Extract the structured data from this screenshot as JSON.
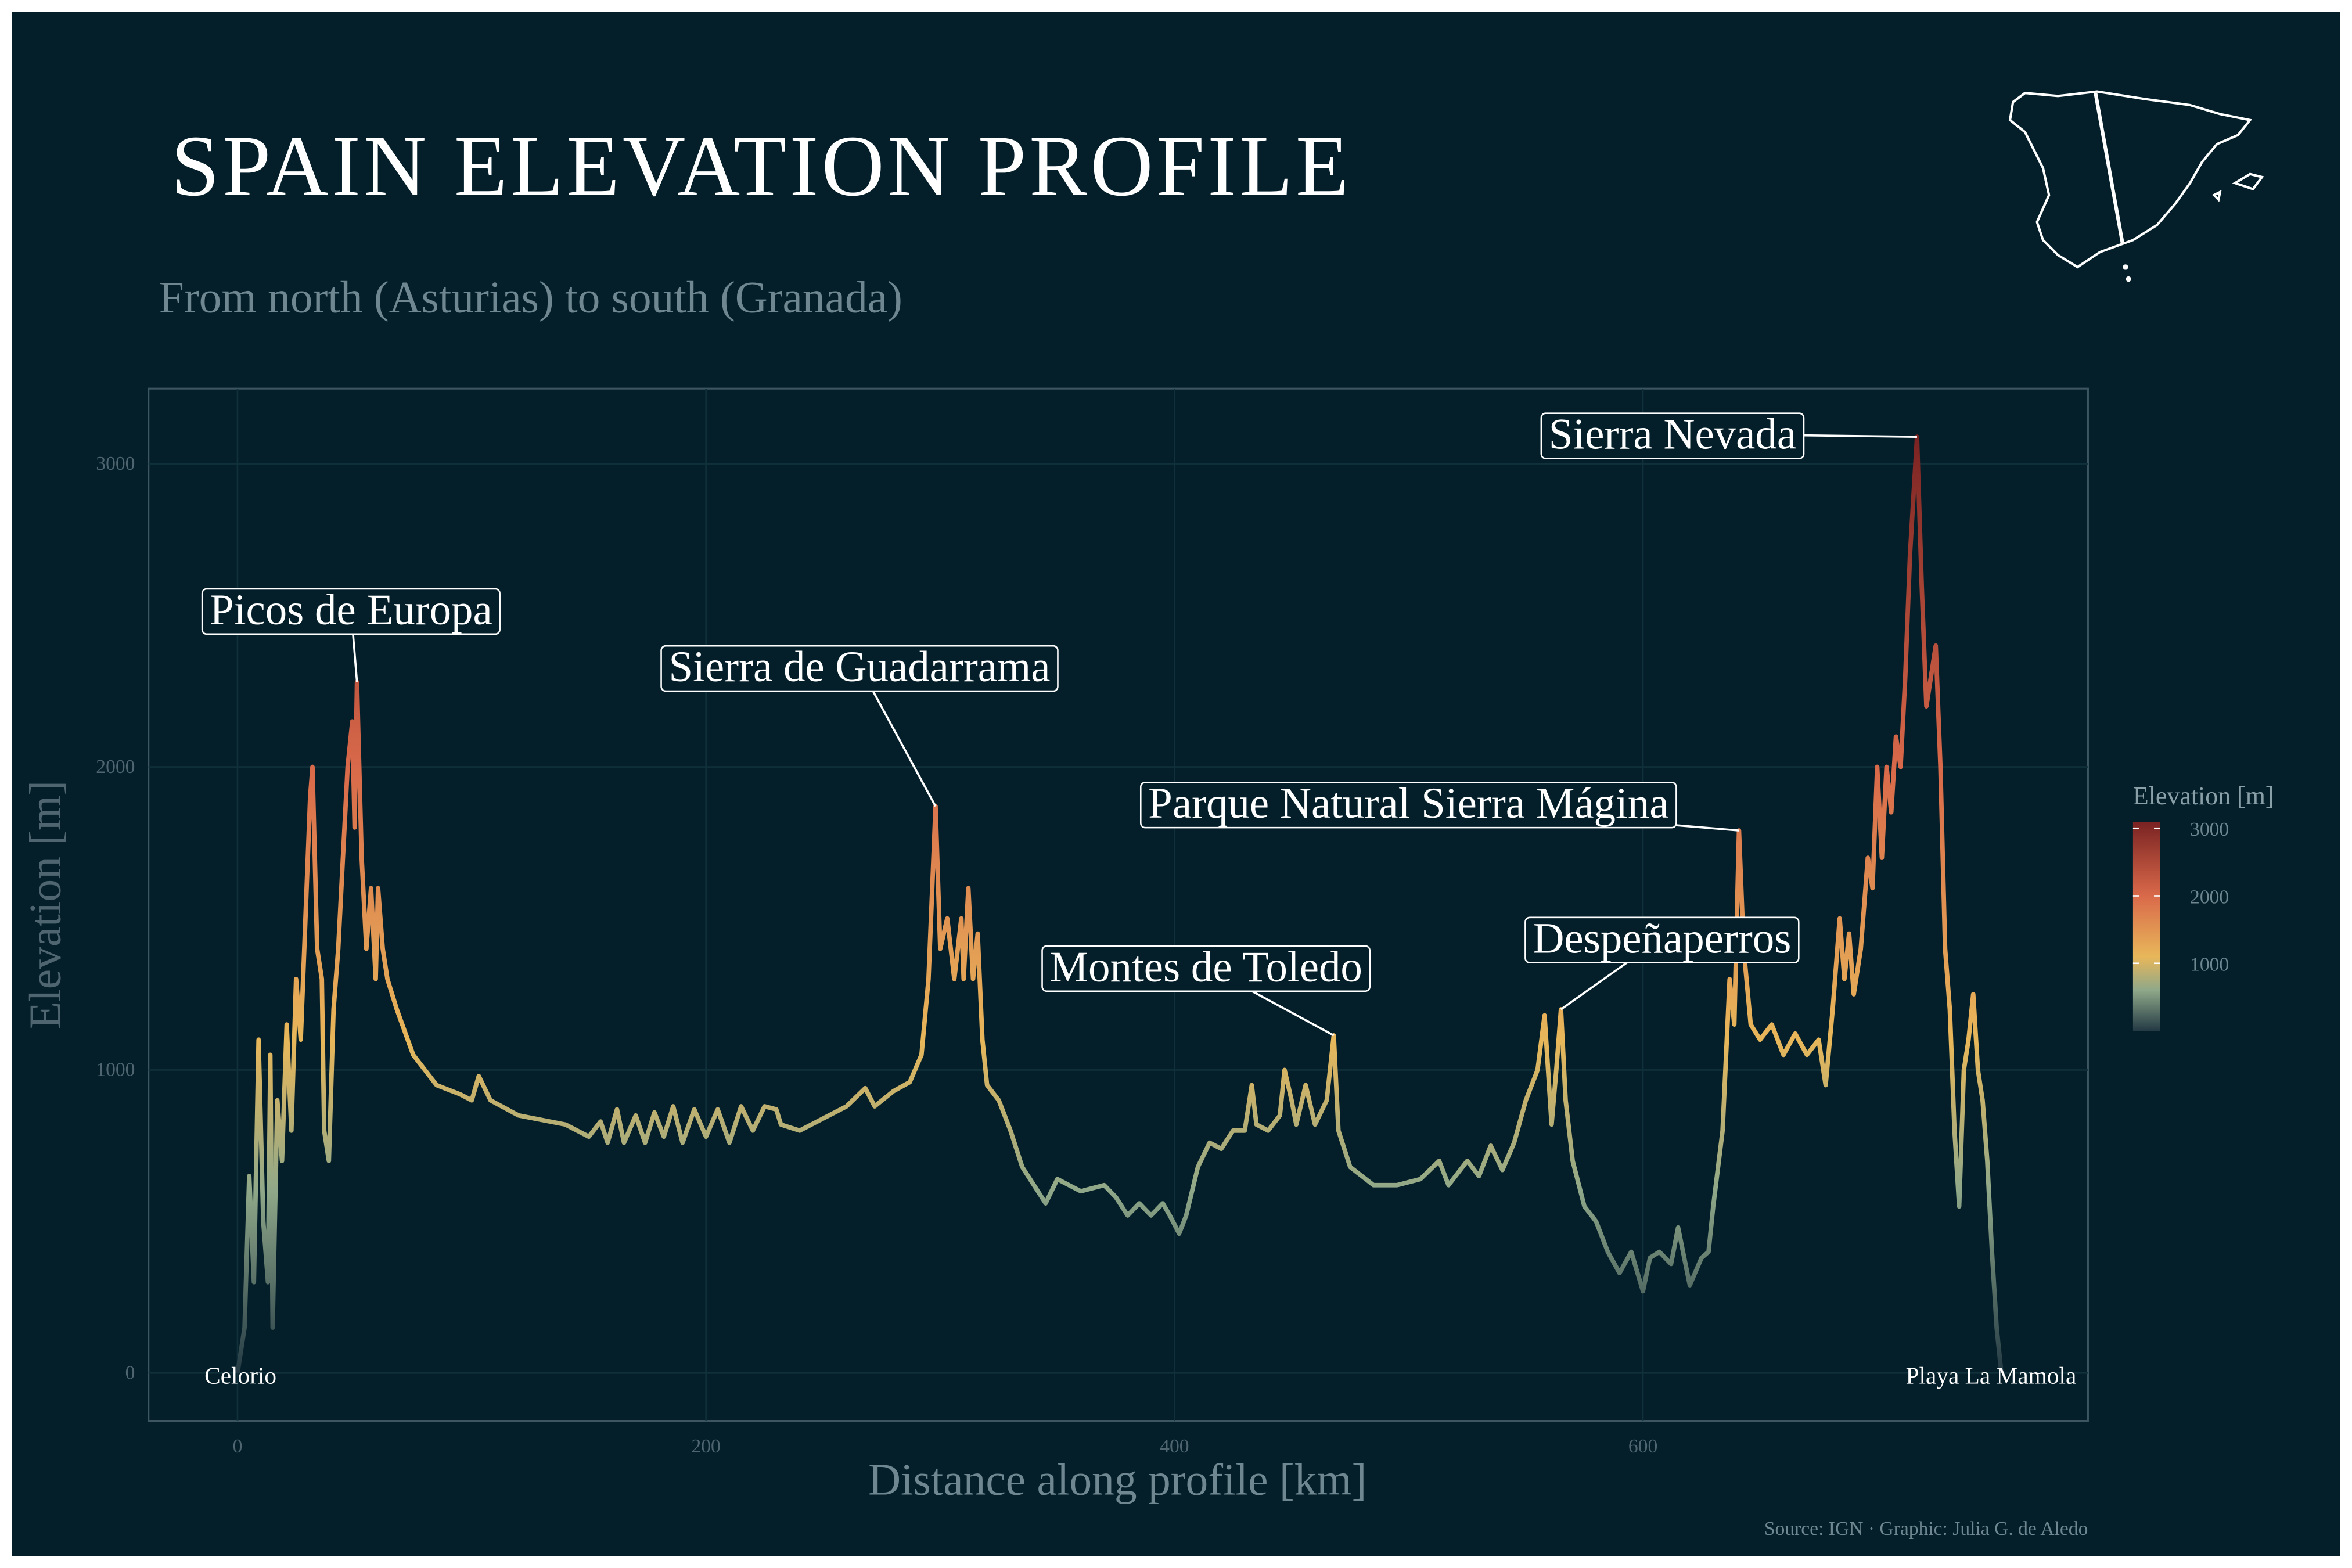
{
  "chart_data": {
    "type": "line",
    "title": "SPAIN ELEVATION PROFILE",
    "subtitle": "From north (Asturias) to south (Granada)",
    "x_label": "Distance along profile [km]",
    "y_label": "Elevation [m]",
    "source": "Source: IGN · Graphic: Julia G. de Aledo",
    "xlim": [
      -38,
      790
    ],
    "ylim": [
      -158,
      3248
    ],
    "xticks": [
      0,
      200,
      400,
      600
    ],
    "yticks": [
      0,
      1000,
      2000,
      3000
    ],
    "grid": true,
    "legend": {
      "title": "Elevation [m]",
      "position": "right",
      "ticks": [
        1000,
        2000,
        3000
      ]
    },
    "color_scale": {
      "limits": [
        0,
        3089
      ],
      "stops": [
        {
          "value": 0,
          "color": "#243a45"
        },
        {
          "value": 600,
          "color": "#8fa889"
        },
        {
          "value": 1100,
          "color": "#e8b75a"
        },
        {
          "value": 2000,
          "color": "#d9694a"
        },
        {
          "value": 3089,
          "color": "#7a2323"
        }
      ]
    },
    "x": [
      0,
      3,
      5,
      7,
      9,
      11,
      13,
      14,
      15,
      17,
      19,
      21,
      23,
      25,
      27,
      29,
      31,
      32,
      34,
      36,
      37,
      39,
      41,
      43,
      45,
      47,
      49,
      50,
      51,
      53,
      55,
      57,
      59,
      60,
      62,
      64,
      68,
      75,
      85,
      95,
      100,
      103,
      108,
      120,
      140,
      150,
      155,
      158,
      162,
      165,
      170,
      174,
      178,
      182,
      186,
      190,
      195,
      200,
      205,
      210,
      215,
      220,
      225,
      230,
      232,
      240,
      250,
      260,
      268,
      272,
      280,
      287,
      292,
      295,
      298,
      300,
      303,
      306,
      309,
      310,
      312,
      314,
      316,
      318,
      320,
      325,
      330,
      335,
      340,
      345,
      350,
      355,
      360,
      370,
      375,
      380,
      385,
      390,
      395,
      398,
      402,
      405,
      410,
      415,
      420,
      425,
      430,
      433,
      435,
      440,
      445,
      447,
      450,
      452,
      456,
      460,
      465,
      468,
      470,
      475,
      485,
      495,
      505,
      513,
      517,
      525,
      530,
      535,
      540,
      545,
      550,
      555,
      558,
      561,
      563,
      565,
      567,
      570,
      575,
      580,
      585,
      590,
      595,
      600,
      603,
      607,
      612,
      615,
      620,
      625,
      628,
      630,
      634,
      637,
      639,
      641,
      643,
      646,
      650,
      655,
      660,
      665,
      670,
      675,
      678,
      681,
      684,
      686,
      688,
      690,
      693,
      696,
      698,
      700,
      702,
      704,
      706,
      708,
      710,
      712,
      714,
      717,
      719,
      721,
      723,
      725,
      727,
      729,
      731,
      733,
      735,
      737,
      739,
      741,
      743,
      745,
      747,
      749,
      751,
      753
    ],
    "values": [
      0,
      150,
      650,
      300,
      1100,
      500,
      300,
      1050,
      150,
      900,
      700,
      1150,
      800,
      1300,
      1100,
      1500,
      1900,
      2000,
      1400,
      1300,
      800,
      700,
      1200,
      1400,
      1700,
      2000,
      2150,
      1800,
      2280,
      1700,
      1400,
      1600,
      1300,
      1600,
      1400,
      1300,
      1200,
      1050,
      950,
      920,
      900,
      980,
      900,
      850,
      820,
      780,
      830,
      760,
      870,
      760,
      850,
      760,
      860,
      780,
      880,
      760,
      870,
      780,
      870,
      760,
      880,
      800,
      880,
      870,
      820,
      800,
      840,
      880,
      940,
      880,
      930,
      960,
      1050,
      1300,
      1870,
      1400,
      1500,
      1300,
      1500,
      1300,
      1600,
      1300,
      1450,
      1100,
      950,
      900,
      800,
      680,
      620,
      560,
      640,
      620,
      600,
      620,
      580,
      520,
      560,
      520,
      560,
      520,
      460,
      520,
      680,
      760,
      740,
      800,
      800,
      950,
      820,
      800,
      850,
      1000,
      900,
      820,
      950,
      820,
      900,
      1114,
      800,
      680,
      620,
      620,
      640,
      700,
      620,
      700,
      650,
      750,
      670,
      760,
      900,
      1000,
      1180,
      820,
      1000,
      1200,
      900,
      700,
      550,
      500,
      400,
      330,
      400,
      270,
      380,
      400,
      360,
      480,
      290,
      380,
      400,
      550,
      800,
      1300,
      1150,
      1790,
      1400,
      1150,
      1100,
      1150,
      1050,
      1120,
      1050,
      1100,
      950,
      1200,
      1500,
      1300,
      1450,
      1250,
      1400,
      1700,
      1600,
      2000,
      1700,
      2000,
      1850,
      2100,
      2000,
      2300,
      2700,
      3089,
      2600,
      2200,
      2300,
      2400,
      2000,
      1400,
      1200,
      800,
      550,
      1000,
      1100,
      1250,
      1000,
      900,
      700,
      400,
      150,
      0
    ],
    "annotations": [
      {
        "text": "Picos de Europa",
        "x": 51,
        "y": 2280
      },
      {
        "text": "Sierra de Guadarrama",
        "x": 298,
        "y": 1870
      },
      {
        "text": "Montes de Toledo",
        "x": 468,
        "y": 1114
      },
      {
        "text": "Parque Natural Sierra Mágina",
        "x": 641,
        "y": 1790
      },
      {
        "text": "Despeñaperros",
        "x": 565,
        "y": 1200
      },
      {
        "text": "Sierra Nevada",
        "x": 717,
        "y": 3089
      }
    ],
    "endpoint_labels": [
      {
        "text": "Celorio",
        "x": 0
      },
      {
        "text": "Playa La Mamola",
        "x": 753
      }
    ]
  }
}
